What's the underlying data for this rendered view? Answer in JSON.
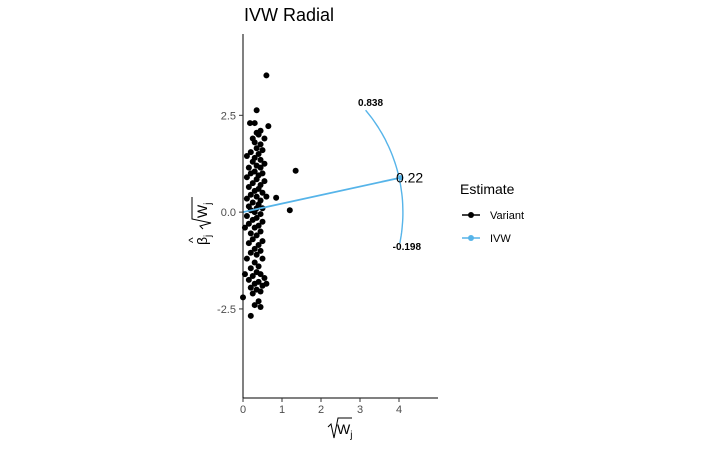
{
  "chart_data": {
    "type": "scatter",
    "title": "IVW Radial",
    "xlabel": "√W",
    "xlabel_sub": "j",
    "ylabel": "β̂ √W",
    "ylabel_sub": "j",
    "xlim": [
      0,
      5
    ],
    "ylim": [
      -4.8,
      4.6
    ],
    "xticks": [
      0,
      1,
      2,
      3,
      4
    ],
    "yticks": [
      -2.5,
      0.0,
      2.5
    ],
    "ytick_labels": [
      "-2.5",
      "0.0",
      "2.5"
    ],
    "legend": {
      "title": "Estimate",
      "placement": "right",
      "entries": [
        {
          "name": "Variant",
          "color": "#000000"
        },
        {
          "name": "IVW",
          "color": "#56B4E9"
        }
      ]
    },
    "ivw_estimate": {
      "label": "0.22",
      "slope": 0.22,
      "end_x": 4.05,
      "color": "#56B4E9"
    },
    "ci_arc": {
      "upper_label": "0.838",
      "lower_label": "-0.198",
      "upper_slope": 0.838,
      "lower_slope": -0.198,
      "radius": 4.1,
      "color": "#56B4E9"
    },
    "series": [
      {
        "name": "Variant",
        "color": "#000000",
        "points": [
          [
            0.6,
            3.53
          ],
          [
            0.35,
            2.63
          ],
          [
            0.18,
            2.3
          ],
          [
            0.3,
            2.3
          ],
          [
            0.65,
            2.22
          ],
          [
            0.45,
            2.1
          ],
          [
            0.35,
            2.05
          ],
          [
            0.4,
            2.0
          ],
          [
            0.25,
            1.9
          ],
          [
            0.55,
            1.9
          ],
          [
            0.3,
            1.8
          ],
          [
            0.45,
            1.75
          ],
          [
            0.35,
            1.65
          ],
          [
            0.5,
            1.6
          ],
          [
            0.2,
            1.55
          ],
          [
            0.4,
            1.5
          ],
          [
            0.1,
            1.45
          ],
          [
            0.3,
            1.4
          ],
          [
            0.45,
            1.35
          ],
          [
            0.25,
            1.3
          ],
          [
            0.55,
            1.25
          ],
          [
            0.35,
            1.2
          ],
          [
            0.15,
            1.15
          ],
          [
            0.45,
            1.15
          ],
          [
            1.35,
            1.07
          ],
          [
            0.3,
            1.05
          ],
          [
            0.5,
            1.0
          ],
          [
            0.2,
            1.0
          ],
          [
            0.4,
            0.95
          ],
          [
            0.1,
            0.9
          ],
          [
            0.35,
            0.85
          ],
          [
            0.55,
            0.8
          ],
          [
            0.25,
            0.75
          ],
          [
            0.45,
            0.7
          ],
          [
            0.15,
            0.65
          ],
          [
            0.4,
            0.6
          ],
          [
            0.3,
            0.55
          ],
          [
            0.5,
            0.5
          ],
          [
            0.2,
            0.45
          ],
          [
            0.35,
            0.4
          ],
          [
            0.6,
            0.4
          ],
          [
            0.85,
            0.37
          ],
          [
            0.1,
            0.35
          ],
          [
            0.45,
            0.3
          ],
          [
            0.25,
            0.25
          ],
          [
            0.4,
            0.2
          ],
          [
            0.15,
            0.15
          ],
          [
            0.35,
            0.1
          ],
          [
            0.5,
            0.1
          ],
          [
            0.2,
            0.05
          ],
          [
            1.2,
            0.05
          ],
          [
            0.3,
            0.0
          ],
          [
            0.45,
            -0.05
          ],
          [
            0.1,
            -0.1
          ],
          [
            0.35,
            -0.15
          ],
          [
            0.25,
            -0.2
          ],
          [
            0.5,
            -0.25
          ],
          [
            0.15,
            -0.3
          ],
          [
            0.4,
            -0.35
          ],
          [
            0.3,
            -0.4
          ],
          [
            0.05,
            -0.4
          ],
          [
            0.45,
            -0.5
          ],
          [
            0.2,
            -0.55
          ],
          [
            0.35,
            -0.6
          ],
          [
            0.25,
            -0.7
          ],
          [
            0.5,
            -0.75
          ],
          [
            0.15,
            -0.8
          ],
          [
            0.4,
            -0.85
          ],
          [
            0.3,
            -0.95
          ],
          [
            0.45,
            -1.0
          ],
          [
            0.2,
            -1.05
          ],
          [
            0.35,
            -1.1
          ],
          [
            0.1,
            -1.2
          ],
          [
            0.5,
            -1.2
          ],
          [
            0.3,
            -1.3
          ],
          [
            0.4,
            -1.4
          ],
          [
            0.2,
            -1.45
          ],
          [
            0.35,
            -1.55
          ],
          [
            0.05,
            -1.6
          ],
          [
            0.45,
            -1.6
          ],
          [
            0.25,
            -1.65
          ],
          [
            0.55,
            -1.7
          ],
          [
            0.15,
            -1.75
          ],
          [
            0.4,
            -1.8
          ],
          [
            0.3,
            -1.85
          ],
          [
            0.6,
            -1.85
          ],
          [
            0.5,
            -1.9
          ],
          [
            0.2,
            -1.95
          ],
          [
            0.35,
            -2.0
          ],
          [
            0.45,
            -2.05
          ],
          [
            0.25,
            -2.1
          ],
          [
            0.0,
            -2.2
          ],
          [
            0.4,
            -2.3
          ],
          [
            0.3,
            -2.4
          ],
          [
            0.45,
            -2.45
          ],
          [
            0.2,
            -2.68
          ]
        ]
      }
    ]
  }
}
